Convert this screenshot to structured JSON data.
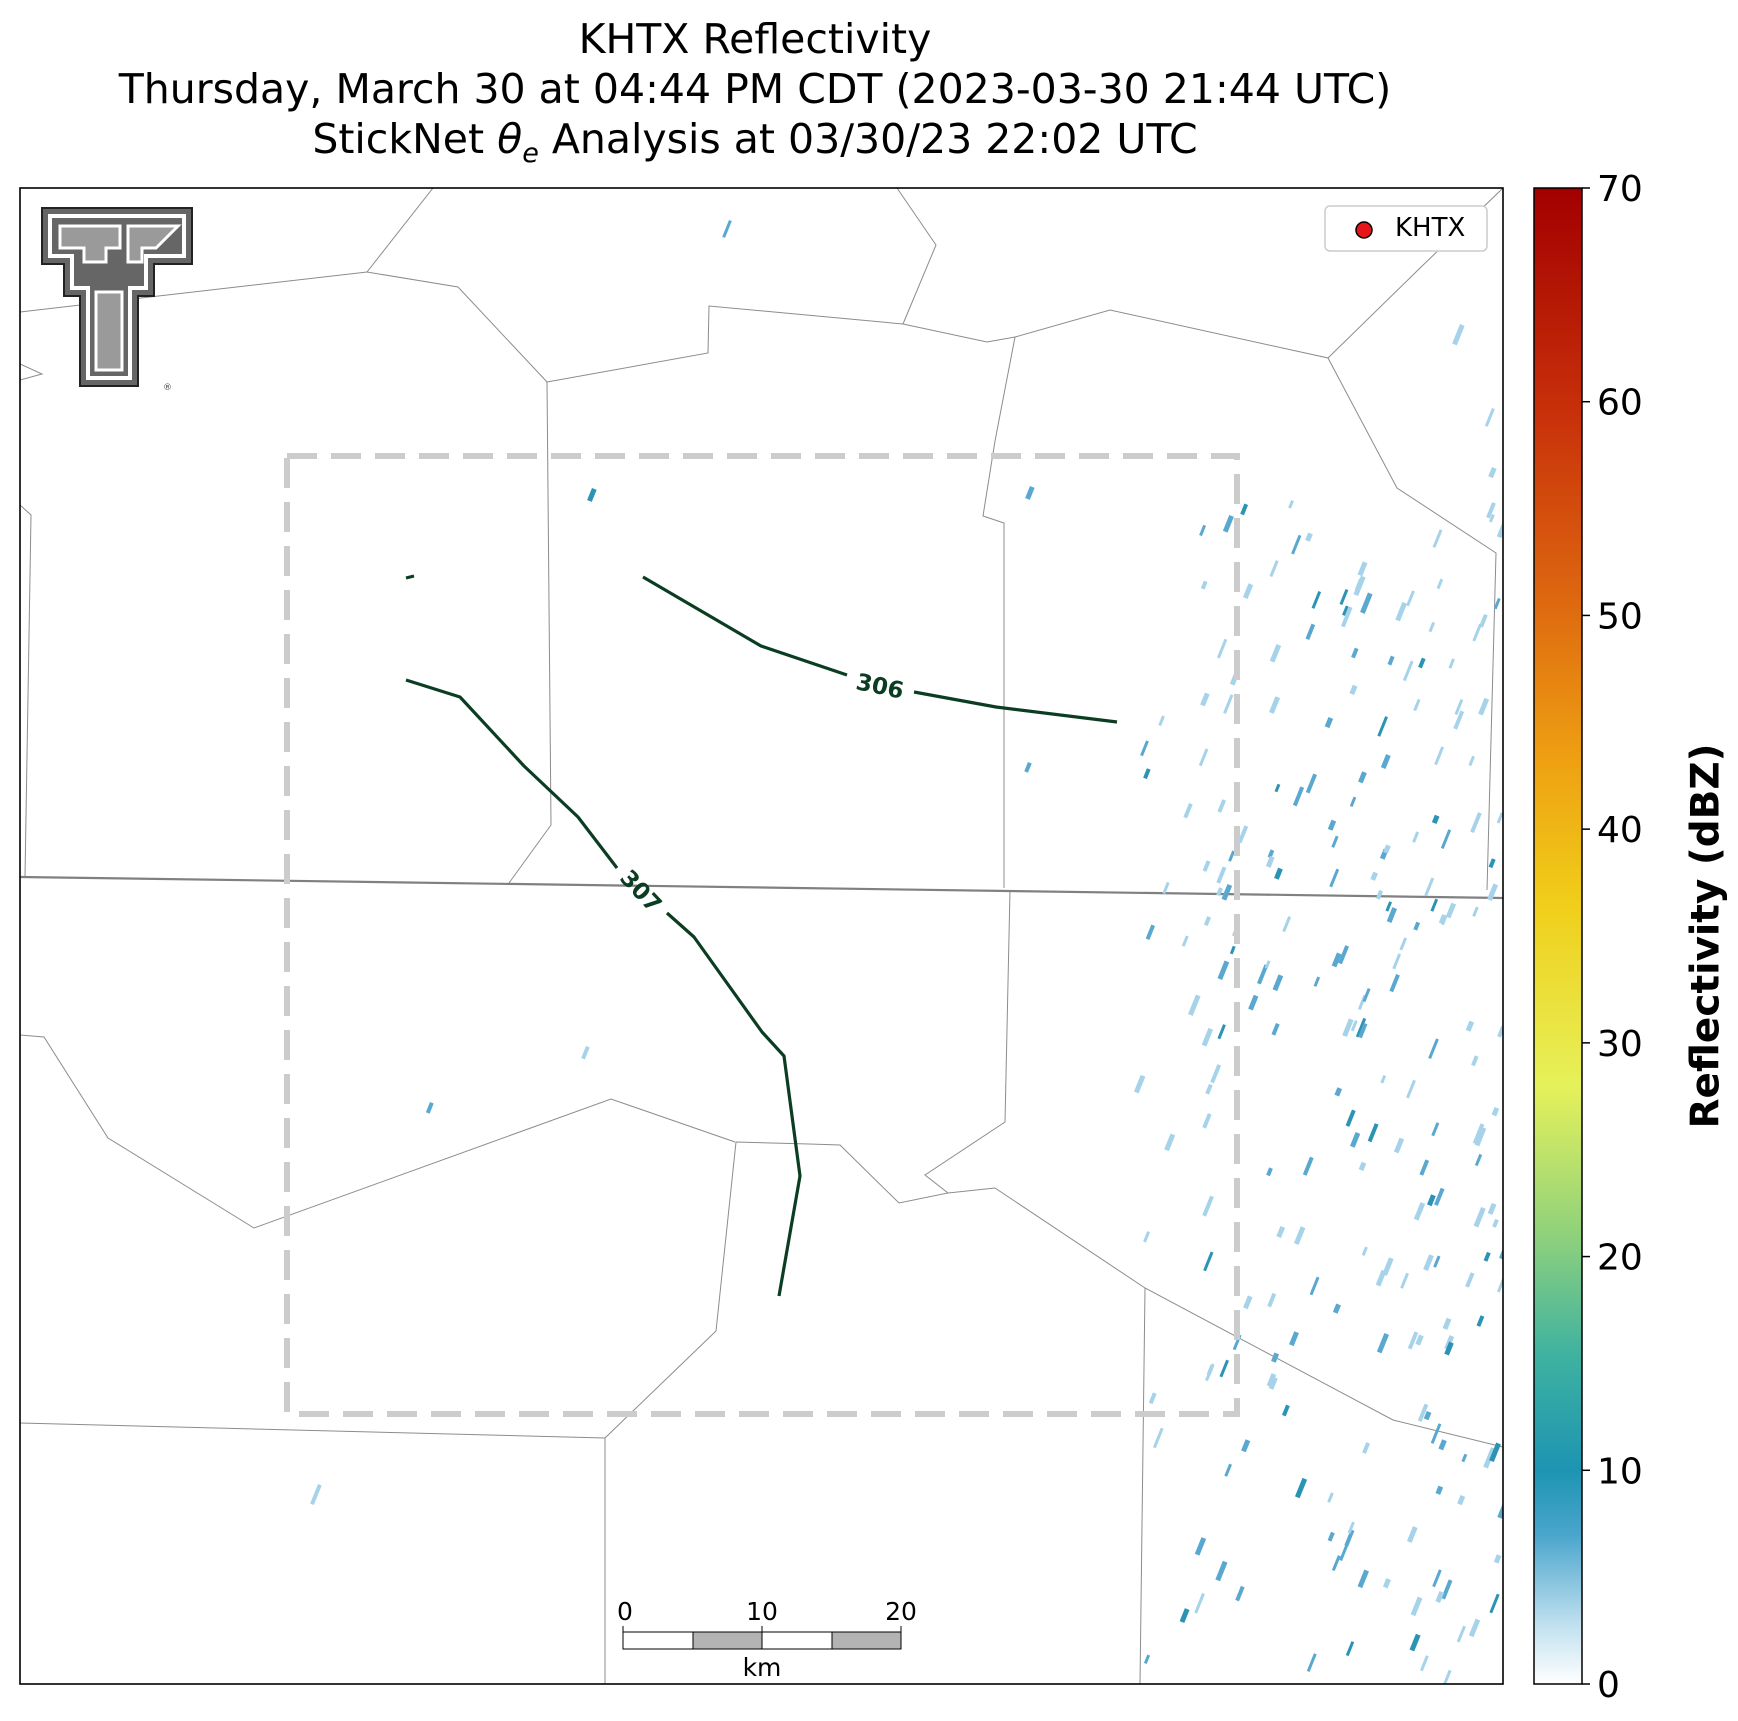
{
  "title": {
    "line1": "KHTX Reflectivity",
    "line2": "Thursday, March 30 at 04:44 PM CDT (2023-03-30 21:44 UTC)",
    "line3_prefix": "StickNet ",
    "line3_symbol": "θ",
    "line3_sub": "e",
    "line3_suffix": " Analysis at 03/30/23 22:02 UTC"
  },
  "legend": {
    "label": "KHTX",
    "marker_color": "#e8141c"
  },
  "colorbar": {
    "label": "Reflectivity (dBZ)",
    "ticks": [
      "0",
      "10",
      "20",
      "30",
      "40",
      "50",
      "60",
      "70"
    ],
    "min": 0,
    "max": 70
  },
  "contours": [
    {
      "label": "306"
    },
    {
      "label": "307"
    }
  ],
  "scale_bar": {
    "ticks": [
      "0",
      "10",
      "20"
    ],
    "unit": "km"
  },
  "colors": {
    "contour": "#0b3d22",
    "analysis_box": "#cccccc",
    "state_border": "#808080",
    "county_border": "#8c8c8c",
    "echo_light": "#a6d3ea",
    "echo_mid": "#5aa8d0",
    "echo_strong": "#2b93b4"
  },
  "logo": {
    "name": "Texas Tech double T logo",
    "mark": "®"
  }
}
